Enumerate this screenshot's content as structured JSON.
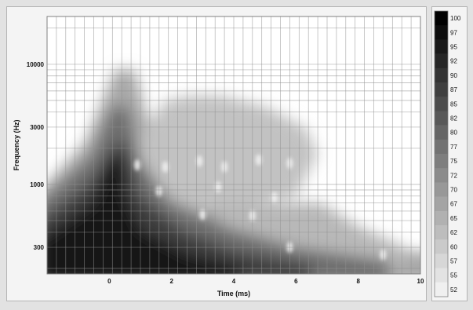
{
  "chart_data": {
    "type": "heatmap",
    "title": "",
    "xlabel": "Time (ms)",
    "ylabel": "Frequency (Hz)",
    "xlim": [
      -2,
      10
    ],
    "ylim": [
      180,
      25000
    ],
    "y_scale": "log",
    "x_ticks": [
      "0",
      "2",
      "4",
      "6",
      "8",
      "10"
    ],
    "y_ticks": [
      "300",
      "1000",
      "3000",
      "10000"
    ],
    "colorbar_ticks": [
      "100",
      "97",
      "95",
      "92",
      "90",
      "87",
      "85",
      "82",
      "80",
      "77",
      "75",
      "72",
      "70",
      "67",
      "65",
      "62",
      "60",
      "57",
      "55",
      "52"
    ],
    "colormap": {
      "high": "#000000",
      "low": "#ffffff"
    },
    "grid": true
  }
}
